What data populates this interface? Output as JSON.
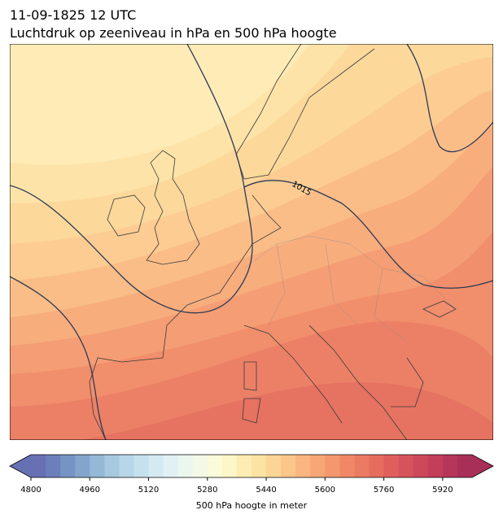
{
  "title": "11-09-1825 12 UTC",
  "subtitle": "Luchtdruk op zeeniveau in hPa en 500 hPa hoogte",
  "isobar_label": "1015",
  "colorbar": {
    "label": "500 hPa hoogte in meter",
    "clim": [
      4800,
      6000
    ],
    "ticks": [
      4800,
      4960,
      5120,
      5280,
      5440,
      5600,
      5760,
      5920
    ],
    "extend": "both",
    "colors": [
      "#6670b3",
      "#6b80bb",
      "#7593c4",
      "#83a5cc",
      "#94b8d6",
      "#a6c9e0",
      "#b7d6e7",
      "#c6e1ee",
      "#d4eaf2",
      "#e1f1f3",
      "#ebf6ef",
      "#f3f9e6",
      "#fafbd9",
      "#fdf6c6",
      "#fdedb2",
      "#fde3a3",
      "#fcd596",
      "#fbc68a",
      "#f9b680",
      "#f7a676",
      "#f4976e",
      "#f08867",
      "#eb7a62",
      "#e66c5e",
      "#df5f5c",
      "#d7535b",
      "#cd485b",
      "#c23e5b",
      "#b6365a",
      "#a82f58"
    ]
  }
}
